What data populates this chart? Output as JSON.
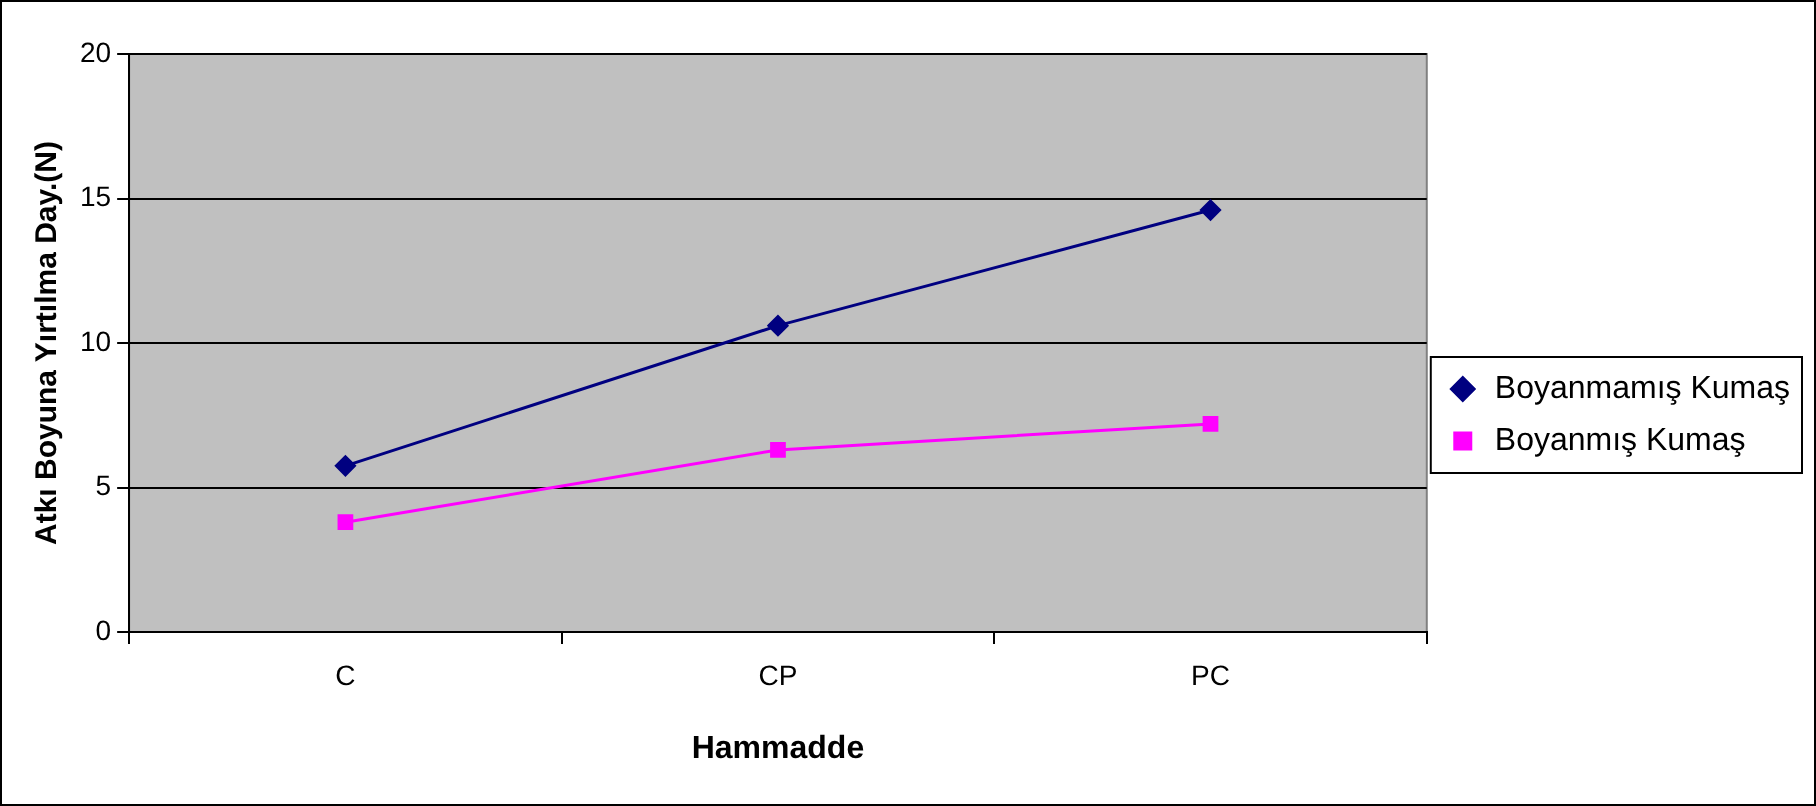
{
  "chart_data": {
    "type": "line",
    "xlabel": "Hammadde",
    "ylabel": "Atkı Boyuna Yırtılma Day.(N)",
    "categories": [
      "C",
      "CP",
      "PC"
    ],
    "series": [
      {
        "name": "Boyanmamış Kumaş",
        "color": "#000080",
        "marker": "diamond",
        "values": [
          5.75,
          10.6,
          14.6
        ]
      },
      {
        "name": "Boyanmış Kumaş",
        "color": "#ff00ff",
        "marker": "square",
        "values": [
          3.8,
          6.3,
          7.2
        ]
      }
    ],
    "ylim": [
      0,
      20
    ],
    "yticks": [
      0,
      5,
      10,
      15,
      20
    ],
    "grid": "y",
    "legend": "right",
    "line_style": "solid"
  }
}
